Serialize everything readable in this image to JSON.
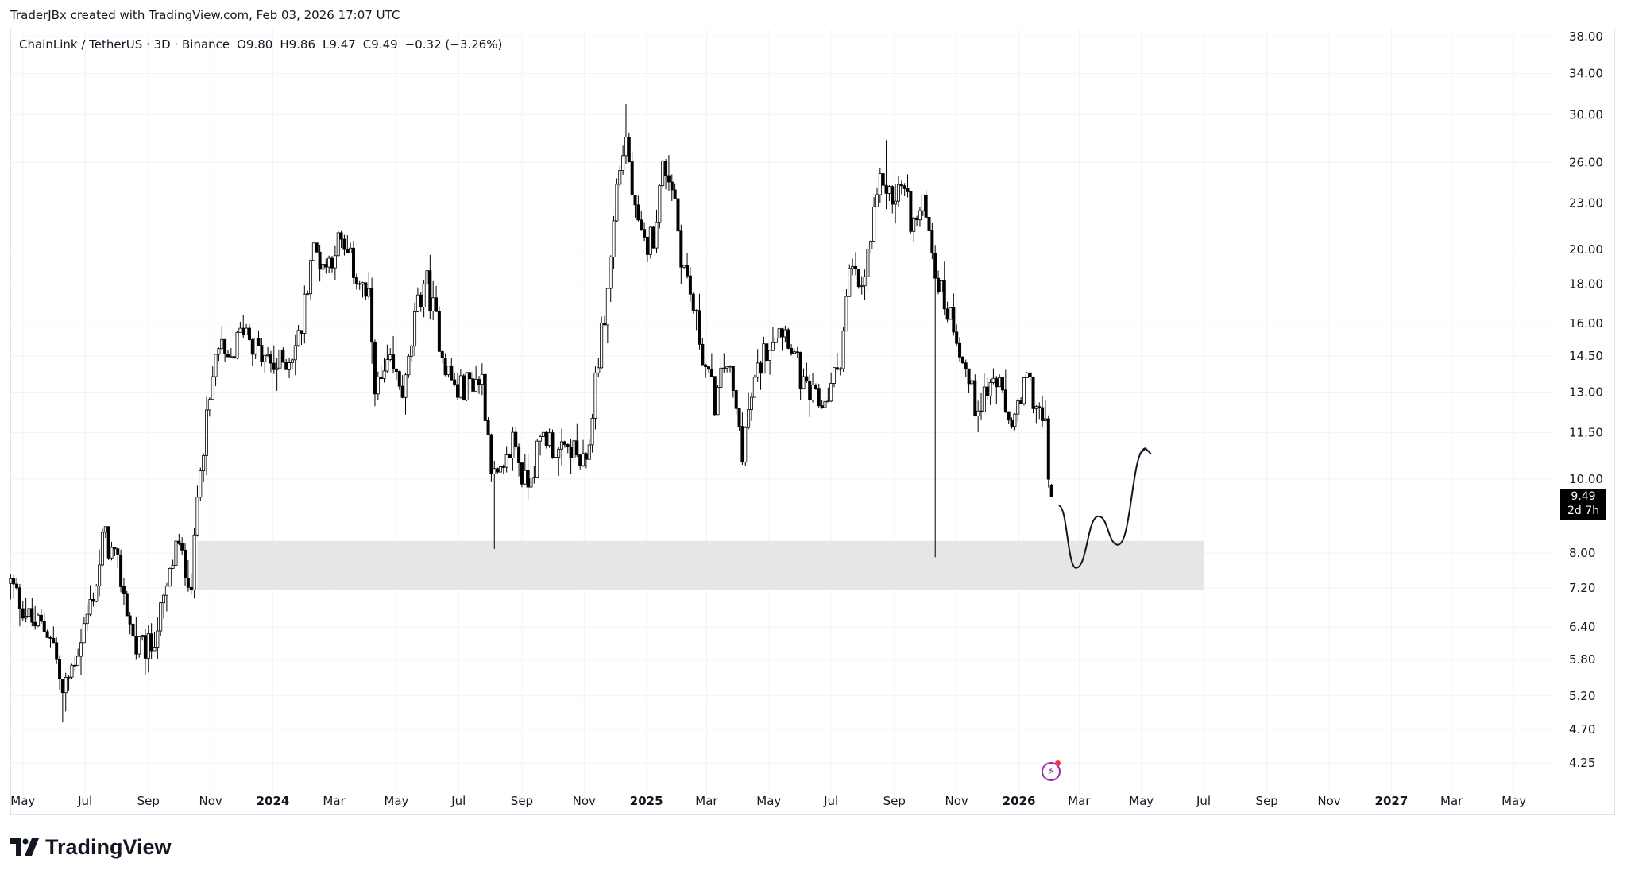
{
  "header": {
    "attribution": "TraderJBx created with TradingView.com, Feb 03, 2026 17:07 UTC"
  },
  "legend": {
    "symbol": "ChainLink / TetherUS · 3D · Binance",
    "open": "O9.80",
    "high": "H9.86",
    "low": "L9.47",
    "close": "C9.49",
    "change": "−0.32 (−3.26%)"
  },
  "last_price": {
    "price": "9.49",
    "countdown": "2d 7h"
  },
  "footer": {
    "brand": "TradingView"
  },
  "icons": {
    "logo": "tradingview-logo-icon",
    "flash": "lightning-icon"
  },
  "colors": {
    "up": "#ffffff",
    "down": "#000000",
    "zone": "#e6e6e6",
    "grid": "#f0f3fa",
    "drawing": "#131722",
    "flash": "#9c27b0"
  },
  "chart_data": {
    "type": "candlestick",
    "symbol": "LINKUSDT",
    "interval": "3D",
    "y_scale": "log",
    "ylim": [
      4.0,
      40.0
    ],
    "xlim": [
      "2023-04-17",
      "2027-06-20"
    ],
    "grid": true,
    "price_ticks": [
      "38.00",
      "34.00",
      "30.00",
      "26.00",
      "23.00",
      "20.00",
      "18.00",
      "16.00",
      "14.50",
      "13.00",
      "11.50",
      "10.00",
      "8.00",
      "7.20",
      "6.40",
      "5.80",
      "5.20",
      "4.70",
      "4.25"
    ],
    "time_ticks": [
      {
        "label": "May",
        "date": "2023-05-01"
      },
      {
        "label": "Jul",
        "date": "2023-07-01"
      },
      {
        "label": "Sep",
        "date": "2023-09-01"
      },
      {
        "label": "Nov",
        "date": "2023-11-01"
      },
      {
        "label": "2024",
        "date": "2024-01-01",
        "bold": true
      },
      {
        "label": "Mar",
        "date": "2024-03-01"
      },
      {
        "label": "May",
        "date": "2024-05-01"
      },
      {
        "label": "Jul",
        "date": "2024-07-01"
      },
      {
        "label": "Sep",
        "date": "2024-09-01"
      },
      {
        "label": "Nov",
        "date": "2024-11-01"
      },
      {
        "label": "2025",
        "date": "2025-01-01",
        "bold": true
      },
      {
        "label": "Mar",
        "date": "2025-03-01"
      },
      {
        "label": "May",
        "date": "2025-05-01"
      },
      {
        "label": "Jul",
        "date": "2025-07-01"
      },
      {
        "label": "Sep",
        "date": "2025-09-01"
      },
      {
        "label": "Nov",
        "date": "2025-11-01"
      },
      {
        "label": "2026",
        "date": "2026-01-01",
        "bold": true
      },
      {
        "label": "Mar",
        "date": "2026-03-01"
      },
      {
        "label": "May",
        "date": "2026-05-01"
      },
      {
        "label": "Jul",
        "date": "2026-07-01"
      },
      {
        "label": "Sep",
        "date": "2026-09-01"
      },
      {
        "label": "Nov",
        "date": "2026-11-01"
      },
      {
        "label": "2027",
        "date": "2027-01-01",
        "bold": true
      },
      {
        "label": "Mar",
        "date": "2027-03-01"
      },
      {
        "label": "May",
        "date": "2027-05-01"
      }
    ],
    "approx_closes": [
      [
        "2023-04-19",
        7.3
      ],
      [
        "2023-05-09",
        6.5
      ],
      [
        "2023-05-29",
        6.3
      ],
      [
        "2023-06-09",
        5.2
      ],
      [
        "2023-06-24",
        6.0
      ],
      [
        "2023-07-14",
        7.5
      ],
      [
        "2023-07-19",
        8.5
      ],
      [
        "2023-08-04",
        7.5
      ],
      [
        "2023-08-19",
        6.0
      ],
      [
        "2023-09-03",
        6.0
      ],
      [
        "2023-09-18",
        7.0
      ],
      [
        "2023-09-28",
        8.2
      ],
      [
        "2023-10-14",
        7.3
      ],
      [
        "2023-10-21",
        10.5
      ],
      [
        "2023-10-29",
        12.0
      ],
      [
        "2023-11-08",
        15.0
      ],
      [
        "2023-11-18",
        14.0
      ],
      [
        "2023-12-04",
        16.0
      ],
      [
        "2023-12-19",
        14.5
      ],
      [
        "2024-01-03",
        14.0
      ],
      [
        "2024-01-18",
        14.5
      ],
      [
        "2024-01-28",
        15.5
      ],
      [
        "2024-02-08",
        20.0
      ],
      [
        "2024-02-23",
        19.0
      ],
      [
        "2024-03-04",
        20.5
      ],
      [
        "2024-03-19",
        19.0
      ],
      [
        "2024-04-04",
        17.0
      ],
      [
        "2024-04-11",
        13.0
      ],
      [
        "2024-04-24",
        14.0
      ],
      [
        "2024-05-09",
        13.0
      ],
      [
        "2024-05-19",
        16.0
      ],
      [
        "2024-05-29",
        18.5
      ],
      [
        "2024-06-09",
        16.0
      ],
      [
        "2024-06-19",
        14.0
      ],
      [
        "2024-06-29",
        13.0
      ],
      [
        "2024-07-14",
        13.5
      ],
      [
        "2024-07-24",
        13.5
      ],
      [
        "2024-08-04",
        10.0
      ],
      [
        "2024-08-14",
        10.0
      ],
      [
        "2024-08-24",
        11.5
      ],
      [
        "2024-09-03",
        9.8
      ],
      [
        "2024-09-13",
        10.5
      ],
      [
        "2024-09-23",
        11.5
      ],
      [
        "2024-10-09",
        10.7
      ],
      [
        "2024-10-19",
        11.0
      ],
      [
        "2024-11-03",
        10.2
      ],
      [
        "2024-11-13",
        14.0
      ],
      [
        "2024-11-23",
        17.0
      ],
      [
        "2024-12-04",
        25.0
      ],
      [
        "2024-12-12",
        28.0
      ],
      [
        "2024-12-21",
        22.0
      ],
      [
        "2024-12-29",
        20.0
      ],
      [
        "2025-01-08",
        21.0
      ],
      [
        "2025-01-18",
        26.0
      ],
      [
        "2025-01-28",
        24.0
      ],
      [
        "2025-02-03",
        20.0
      ],
      [
        "2025-02-13",
        17.5
      ],
      [
        "2025-02-28",
        14.0
      ],
      [
        "2025-03-10",
        12.5
      ],
      [
        "2025-03-20",
        14.5
      ],
      [
        "2025-04-05",
        11.0
      ],
      [
        "2025-04-15",
        13.0
      ],
      [
        "2025-04-25",
        14.5
      ],
      [
        "2025-05-10",
        16.0
      ],
      [
        "2025-05-20",
        15.5
      ],
      [
        "2025-06-05",
        13.0
      ],
      [
        "2025-06-20",
        12.5
      ],
      [
        "2025-06-30",
        13.0
      ],
      [
        "2025-07-10",
        14.5
      ],
      [
        "2025-07-20",
        19.0
      ],
      [
        "2025-07-31",
        17.5
      ],
      [
        "2025-08-10",
        21.0
      ],
      [
        "2025-08-20",
        25.0
      ],
      [
        "2025-08-30",
        23.0
      ],
      [
        "2025-09-09",
        24.5
      ],
      [
        "2025-09-19",
        21.5
      ],
      [
        "2025-10-03",
        23.0
      ],
      [
        "2025-10-10",
        19.0
      ],
      [
        "2025-10-20",
        17.0
      ],
      [
        "2025-10-30",
        16.0
      ],
      [
        "2025-11-09",
        14.0
      ],
      [
        "2025-11-19",
        12.5
      ],
      [
        "2025-11-29",
        13.0
      ],
      [
        "2025-12-10",
        13.5
      ],
      [
        "2025-12-20",
        12.0
      ],
      [
        "2025-12-30",
        12.0
      ],
      [
        "2026-01-09",
        13.5
      ],
      [
        "2026-01-19",
        12.5
      ],
      [
        "2026-01-27",
        11.5
      ],
      [
        "2026-01-30",
        10.0
      ],
      [
        "2026-02-03",
        9.49
      ]
    ],
    "notable_wicks": [
      {
        "date": "2023-06-10",
        "low": 4.8
      },
      {
        "date": "2024-08-05",
        "low": 8.1
      },
      {
        "date": "2024-12-13",
        "high": 31.0
      },
      {
        "date": "2025-08-23",
        "high": 27.8
      },
      {
        "date": "2025-10-10",
        "low": 7.9
      }
    ],
    "last_candle": {
      "date": "2026-02-03",
      "open": 9.8,
      "high": 9.86,
      "low": 9.47,
      "close": 9.49
    },
    "support_zone": {
      "from": "2023-10-19",
      "to": "2026-07-01",
      "low": 7.15,
      "high": 8.3
    },
    "projection_path": [
      [
        "2026-02-09",
        9.23
      ],
      [
        "2026-02-26",
        7.65
      ],
      [
        "2026-03-20",
        8.94
      ],
      [
        "2026-04-08",
        8.2
      ],
      [
        "2026-05-05",
        10.97
      ]
    ]
  }
}
